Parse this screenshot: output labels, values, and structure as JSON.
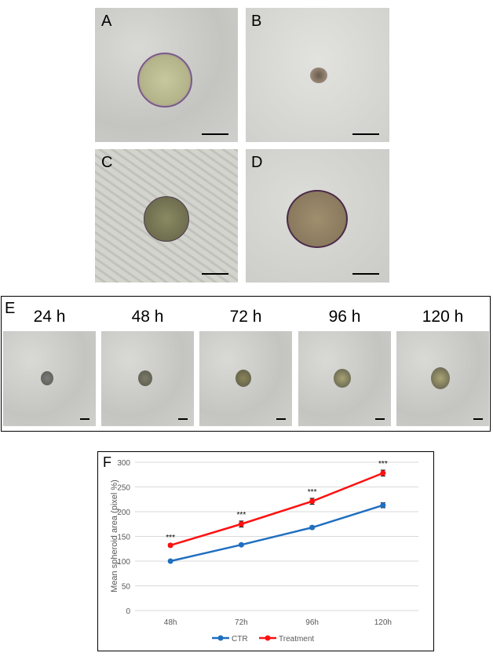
{
  "panels": {
    "A": "A",
    "B": "B",
    "C": "C",
    "D": "D",
    "E": "E",
    "F": "F"
  },
  "timecourse": {
    "labels": [
      "24 h",
      "48 h",
      "72 h",
      "96 h",
      "120 h"
    ]
  },
  "chart_data": {
    "type": "line",
    "categories": [
      "48h",
      "72h",
      "96h",
      "120h"
    ],
    "ylabel": "Mean spheroid area (pixel %)",
    "xlabel": "",
    "ylim": [
      0,
      300
    ],
    "yticks": [
      0,
      50,
      100,
      150,
      200,
      250,
      300
    ],
    "grid": true,
    "legend": "bottom",
    "series": [
      {
        "name": "CTR",
        "color": "#1f6fc0",
        "values": [
          100,
          133,
          168,
          213
        ],
        "errors": [
          1,
          2,
          3,
          5
        ]
      },
      {
        "name": "Treatment",
        "color": "#ff1010",
        "values": [
          132,
          175,
          221,
          278
        ],
        "errors": [
          3,
          6,
          6,
          6
        ]
      }
    ],
    "annotations": [
      "***",
      "***",
      "***",
      "***"
    ]
  }
}
